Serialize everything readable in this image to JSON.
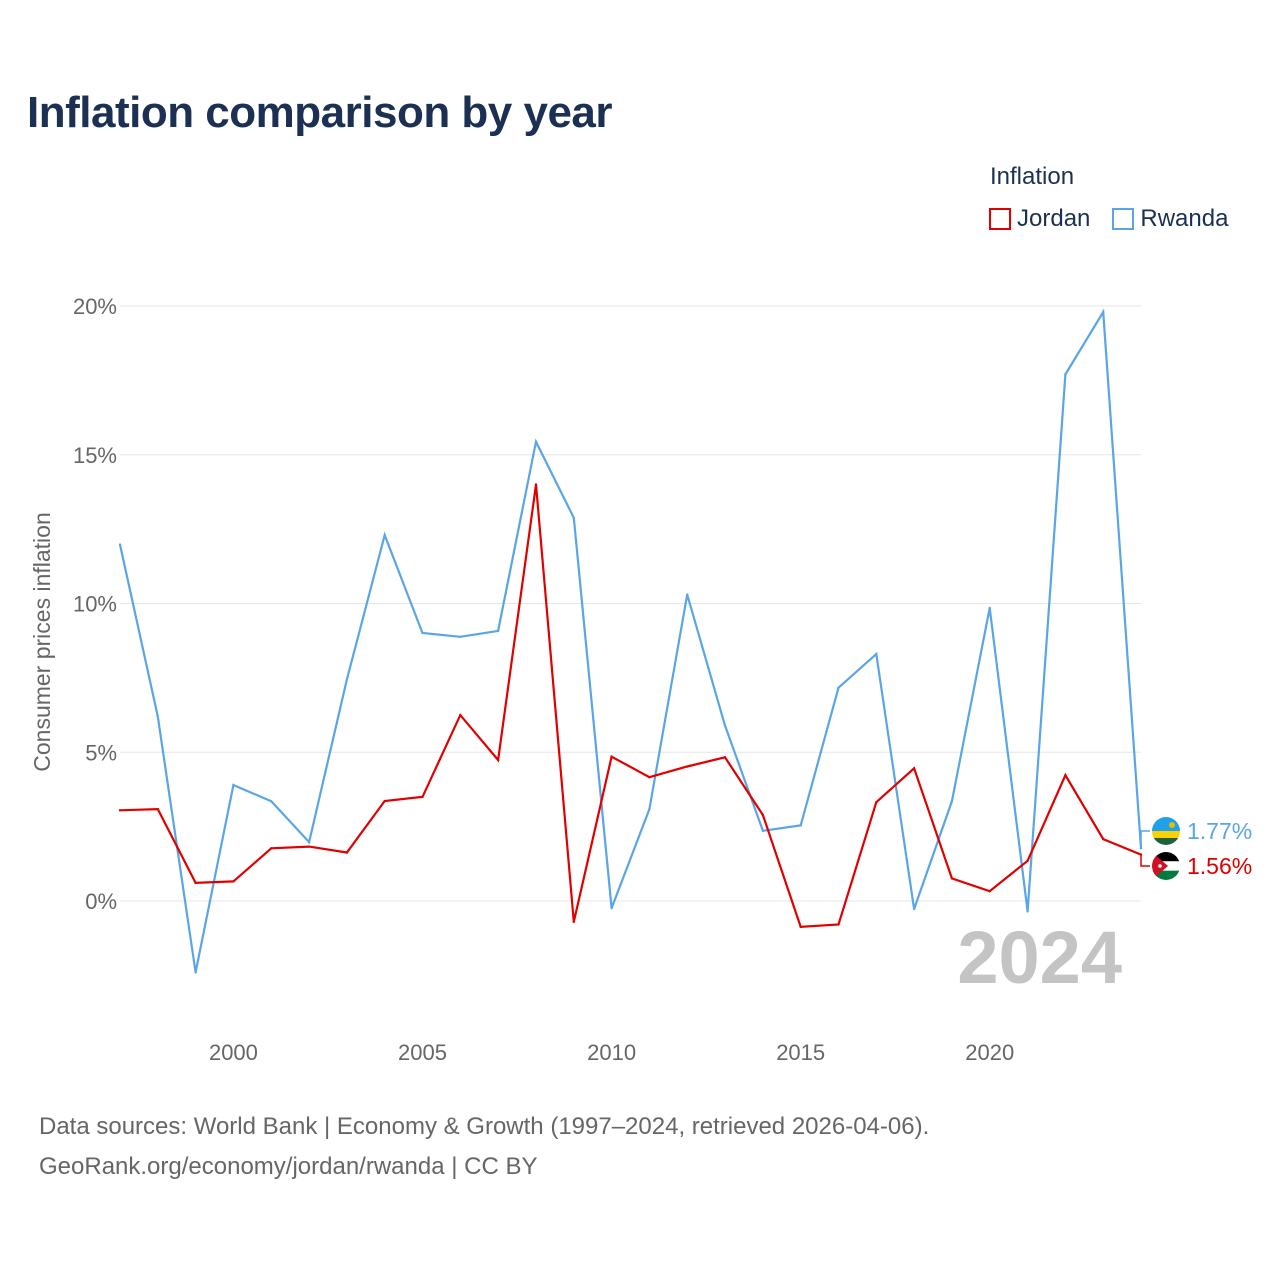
{
  "title": "Inflation comparison by year",
  "legend": {
    "title": "Inflation",
    "items": [
      {
        "label": "Jordan",
        "color": "#e10000"
      },
      {
        "label": "Rwanda",
        "color": "#5aa5e6"
      }
    ]
  },
  "year_watermark": "2024",
  "footer": {
    "line1": "Data sources: World Bank | Economy & Growth (1997–2024, retrieved 2026-04-06).",
    "line2": "GeoRank.org/economy/jordan/rwanda | CC BY"
  },
  "chart_data": {
    "type": "line",
    "title": "Inflation comparison by year",
    "xlabel": "",
    "ylabel": "Consumer prices inflation",
    "xlim": [
      1997,
      2024
    ],
    "ylim": [
      -4,
      20
    ],
    "x_ticks": [
      2000,
      2005,
      2010,
      2015,
      2020
    ],
    "y_ticks": [
      0,
      5,
      10,
      15,
      20
    ],
    "y_tick_labels": [
      "0%",
      "5%",
      "10%",
      "15%",
      "20%"
    ],
    "grid": true,
    "legend_position": "top-right",
    "x": [
      1997,
      1998,
      1999,
      2000,
      2001,
      2002,
      2003,
      2004,
      2005,
      2006,
      2007,
      2008,
      2009,
      2010,
      2011,
      2012,
      2013,
      2014,
      2015,
      2016,
      2017,
      2018,
      2019,
      2020,
      2021,
      2022,
      2023,
      2024
    ],
    "series": [
      {
        "name": "Jordan",
        "color": "#e10000",
        "values": [
          3.05,
          3.09,
          0.61,
          0.66,
          1.77,
          1.83,
          1.63,
          3.36,
          3.5,
          6.25,
          4.74,
          14.0,
          -0.7,
          4.85,
          4.16,
          4.52,
          4.83,
          2.89,
          -0.87,
          -0.79,
          3.32,
          4.46,
          0.76,
          0.33,
          1.35,
          4.23,
          2.08,
          1.56
        ],
        "end_label": "1.56%"
      },
      {
        "name": "Rwanda",
        "color": "#5aa5e6",
        "values": [
          11.98,
          6.2,
          -2.4,
          3.9,
          3.35,
          1.98,
          7.45,
          12.3,
          9.01,
          8.88,
          9.08,
          15.44,
          12.88,
          -0.24,
          3.09,
          10.3,
          5.9,
          2.36,
          2.54,
          7.17,
          8.3,
          -0.27,
          3.35,
          9.85,
          -0.35,
          17.7,
          19.8,
          1.77
        ],
        "end_label": "1.77%"
      }
    ]
  }
}
